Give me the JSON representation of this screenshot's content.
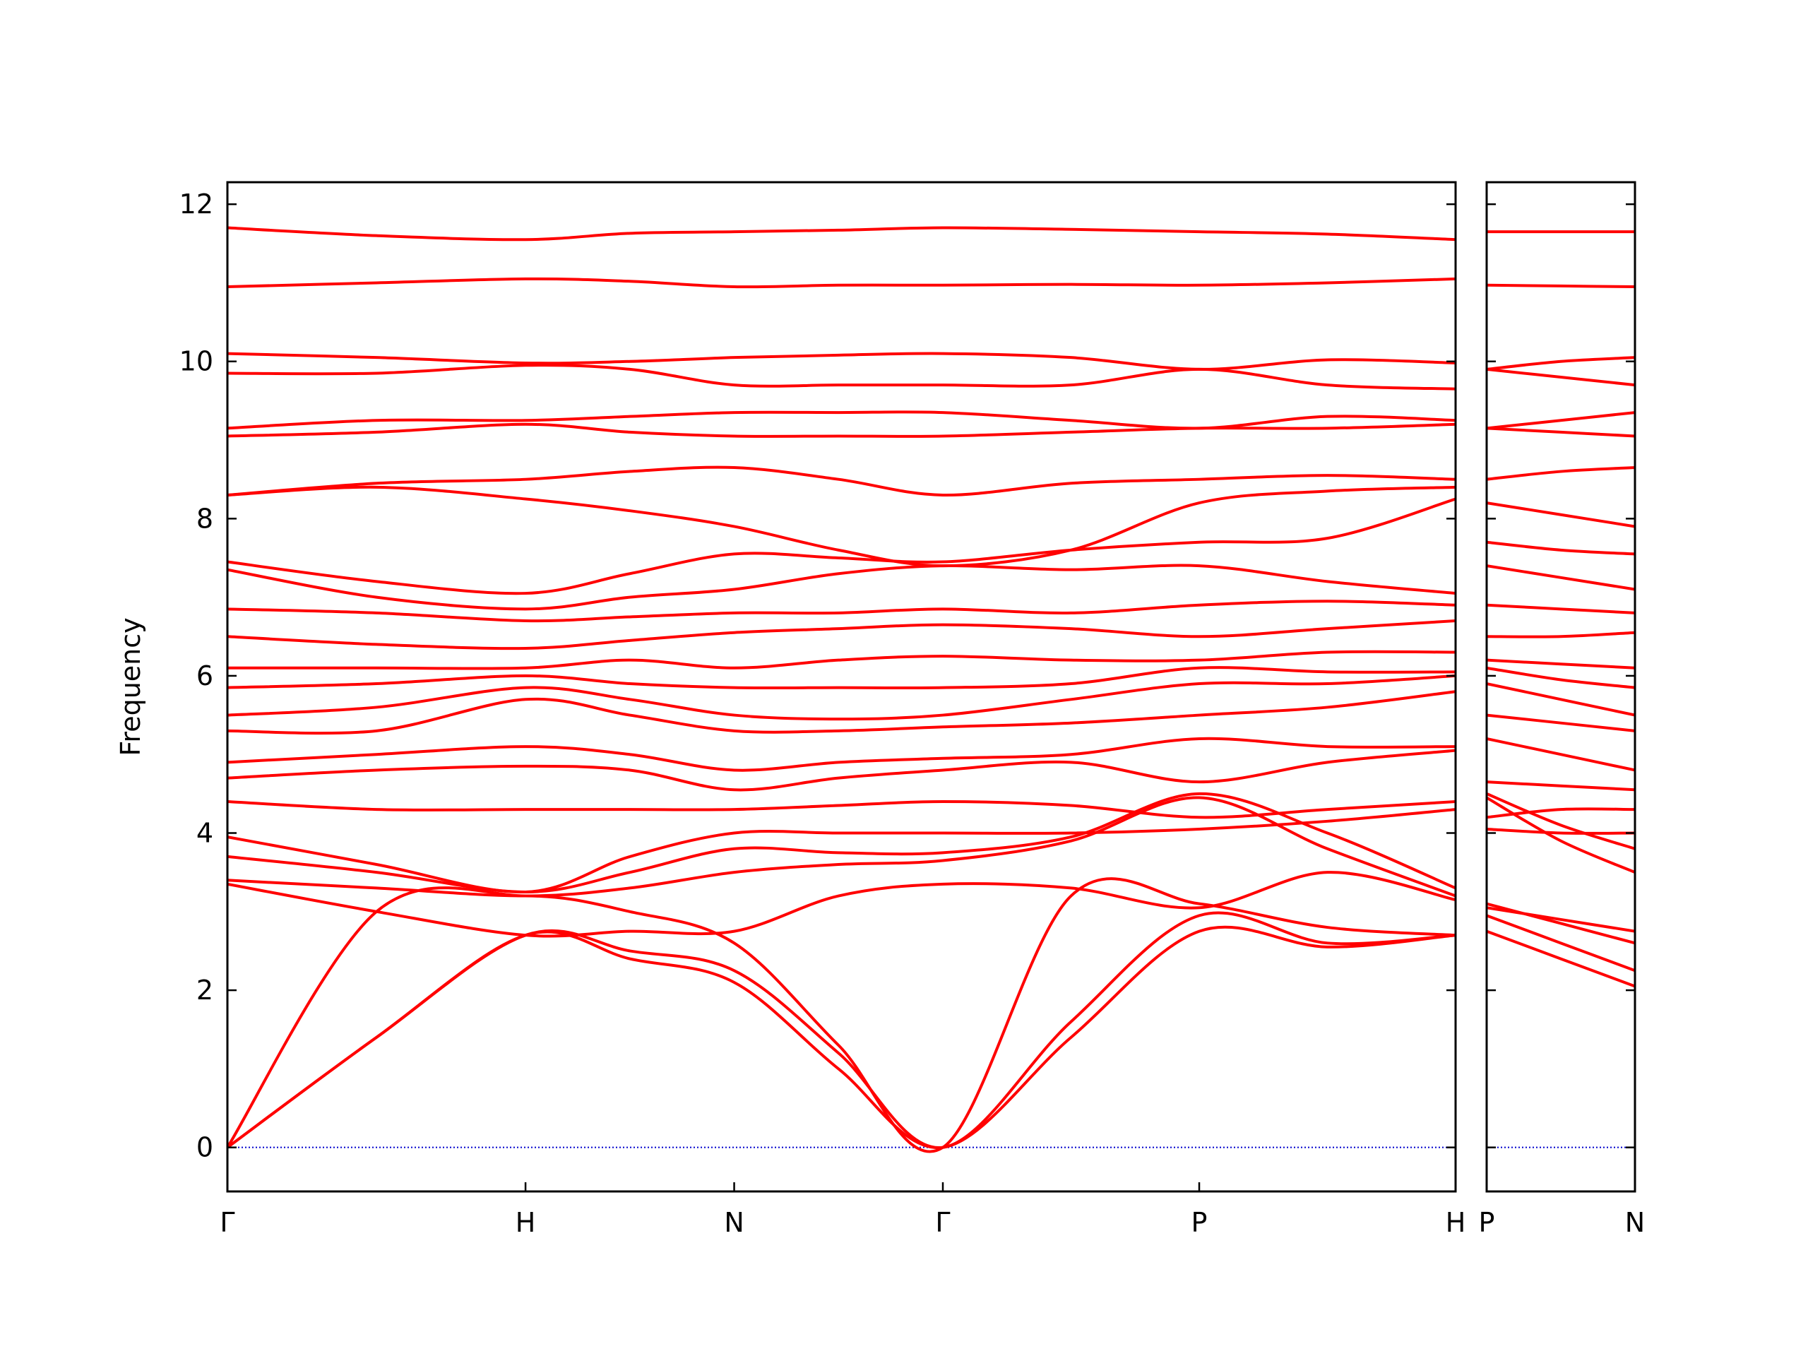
{
  "chart_data": [
    {
      "type": "line",
      "y_label": "Frequency",
      "color": "#ff0000",
      "x": [
        0,
        0.5,
        1,
        1.35,
        1.7,
        2.05,
        2.4,
        2.83,
        3.26,
        3.69,
        4.12
      ],
      "xlim": [
        0,
        4.12
      ],
      "xticks": [
        {
          "value": 0,
          "label": "Γ"
        },
        {
          "value": 1,
          "label": "H"
        },
        {
          "value": 1.7,
          "label": "N"
        },
        {
          "value": 2.4,
          "label": "Γ"
        },
        {
          "value": 3.26,
          "label": "P"
        },
        {
          "value": 4.12,
          "label": "H"
        }
      ],
      "ylim": [
        -0.56,
        12.28
      ],
      "yticks": [
        0,
        2,
        4,
        6,
        8,
        10,
        12
      ],
      "show_ytick_labels": true,
      "hline": 0,
      "hline_color": "#0000cc",
      "series": [
        {
          "values": [
            0,
            1.4,
            2.7,
            2.4,
            2.1,
            1.0,
            0,
            1.4,
            2.75,
            2.55,
            2.7
          ]
        },
        {
          "values": [
            0,
            1.4,
            2.7,
            2.5,
            2.25,
            1.2,
            0,
            1.6,
            2.95,
            2.6,
            2.7
          ]
        },
        {
          "values": [
            0,
            3.0,
            3.2,
            3.0,
            2.6,
            1.3,
            0,
            3.2,
            3.1,
            2.8,
            2.7
          ]
        },
        {
          "values": [
            3.35,
            3.0,
            2.7,
            2.75,
            2.75,
            3.2,
            3.35,
            3.3,
            3.05,
            3.5,
            3.15
          ]
        },
        {
          "values": [
            3.4,
            3.3,
            3.2,
            3.3,
            3.5,
            3.6,
            3.65,
            3.9,
            4.45,
            3.8,
            3.2
          ]
        },
        {
          "values": [
            3.7,
            3.5,
            3.25,
            3.5,
            3.8,
            3.75,
            3.75,
            3.95,
            4.5,
            4.0,
            3.3
          ]
        },
        {
          "values": [
            3.95,
            3.6,
            3.25,
            3.7,
            4.0,
            4.0,
            4.0,
            4.0,
            4.05,
            4.15,
            4.3
          ]
        },
        {
          "values": [
            4.4,
            4.3,
            4.3,
            4.3,
            4.3,
            4.35,
            4.4,
            4.35,
            4.2,
            4.3,
            4.4
          ]
        },
        {
          "values": [
            4.7,
            4.8,
            4.85,
            4.8,
            4.55,
            4.7,
            4.8,
            4.9,
            4.65,
            4.9,
            5.05
          ]
        },
        {
          "values": [
            4.9,
            5.0,
            5.1,
            5.0,
            4.8,
            4.9,
            4.95,
            5.0,
            5.2,
            5.1,
            5.1
          ]
        },
        {
          "values": [
            5.3,
            5.3,
            5.7,
            5.5,
            5.3,
            5.3,
            5.35,
            5.4,
            5.5,
            5.6,
            5.8
          ]
        },
        {
          "values": [
            5.5,
            5.6,
            5.85,
            5.7,
            5.5,
            5.45,
            5.5,
            5.7,
            5.9,
            5.9,
            6.0
          ]
        },
        {
          "values": [
            5.85,
            5.9,
            6.0,
            5.9,
            5.85,
            5.85,
            5.85,
            5.9,
            6.1,
            6.05,
            6.05
          ]
        },
        {
          "values": [
            6.1,
            6.1,
            6.1,
            6.2,
            6.1,
            6.2,
            6.25,
            6.2,
            6.2,
            6.3,
            6.3
          ]
        },
        {
          "values": [
            6.5,
            6.4,
            6.35,
            6.45,
            6.55,
            6.6,
            6.65,
            6.6,
            6.5,
            6.6,
            6.7
          ]
        },
        {
          "values": [
            6.85,
            6.8,
            6.7,
            6.75,
            6.8,
            6.8,
            6.85,
            6.8,
            6.9,
            6.95,
            6.9
          ]
        },
        {
          "values": [
            7.35,
            7.0,
            6.85,
            7.0,
            7.1,
            7.3,
            7.4,
            7.35,
            7.4,
            7.2,
            7.05
          ]
        },
        {
          "values": [
            7.45,
            7.2,
            7.05,
            7.3,
            7.55,
            7.5,
            7.45,
            7.6,
            7.7,
            7.75,
            8.25
          ]
        },
        {
          "values": [
            8.3,
            8.4,
            8.25,
            8.1,
            7.9,
            7.6,
            7.4,
            7.6,
            8.2,
            8.35,
            8.4
          ]
        },
        {
          "values": [
            8.3,
            8.45,
            8.5,
            8.6,
            8.65,
            8.5,
            8.3,
            8.45,
            8.5,
            8.55,
            8.5
          ]
        },
        {
          "values": [
            9.05,
            9.1,
            9.2,
            9.1,
            9.05,
            9.05,
            9.05,
            9.1,
            9.15,
            9.15,
            9.2
          ]
        },
        {
          "values": [
            9.15,
            9.25,
            9.25,
            9.3,
            9.35,
            9.35,
            9.35,
            9.25,
            9.15,
            9.3,
            9.25
          ]
        },
        {
          "values": [
            9.85,
            9.85,
            9.95,
            9.9,
            9.7,
            9.7,
            9.7,
            9.7,
            9.9,
            9.7,
            9.65
          ]
        },
        {
          "values": [
            10.1,
            10.05,
            9.98,
            10.0,
            10.05,
            10.08,
            10.1,
            10.05,
            9.9,
            10.02,
            9.98
          ]
        },
        {
          "values": [
            10.95,
            11.0,
            11.05,
            11.02,
            10.95,
            10.97,
            10.97,
            10.98,
            10.97,
            11.0,
            11.05
          ]
        },
        {
          "values": [
            11.7,
            11.6,
            11.55,
            11.63,
            11.65,
            11.67,
            11.7,
            11.68,
            11.65,
            11.62,
            11.55
          ]
        }
      ]
    },
    {
      "type": "line",
      "color": "#ff0000",
      "x": [
        0,
        0.25,
        0.5
      ],
      "xlim": [
        0,
        0.5
      ],
      "xticks": [
        {
          "value": 0,
          "label": "P"
        },
        {
          "value": 0.5,
          "label": "N"
        }
      ],
      "ylim": [
        -0.56,
        12.28
      ],
      "yticks": [
        0,
        2,
        4,
        6,
        8,
        10,
        12
      ],
      "show_ytick_labels": false,
      "hline": 0,
      "hline_color": "#0000cc",
      "series": [
        {
          "values": [
            2.75,
            2.4,
            2.05
          ]
        },
        {
          "values": [
            2.95,
            2.6,
            2.25
          ]
        },
        {
          "values": [
            3.1,
            2.85,
            2.6
          ]
        },
        {
          "values": [
            3.05,
            2.9,
            2.75
          ]
        },
        {
          "values": [
            4.45,
            3.9,
            3.5
          ]
        },
        {
          "values": [
            4.5,
            4.1,
            3.8
          ]
        },
        {
          "values": [
            4.05,
            4.0,
            4.0
          ]
        },
        {
          "values": [
            4.2,
            4.3,
            4.3
          ]
        },
        {
          "values": [
            4.65,
            4.6,
            4.55
          ]
        },
        {
          "values": [
            5.2,
            5.0,
            4.8
          ]
        },
        {
          "values": [
            5.5,
            5.4,
            5.3
          ]
        },
        {
          "values": [
            5.9,
            5.7,
            5.5
          ]
        },
        {
          "values": [
            6.1,
            5.95,
            5.85
          ]
        },
        {
          "values": [
            6.2,
            6.15,
            6.1
          ]
        },
        {
          "values": [
            6.5,
            6.5,
            6.55
          ]
        },
        {
          "values": [
            6.9,
            6.85,
            6.8
          ]
        },
        {
          "values": [
            7.4,
            7.25,
            7.1
          ]
        },
        {
          "values": [
            7.7,
            7.6,
            7.55
          ]
        },
        {
          "values": [
            8.2,
            8.05,
            7.9
          ]
        },
        {
          "values": [
            8.5,
            8.6,
            8.65
          ]
        },
        {
          "values": [
            9.15,
            9.1,
            9.05
          ]
        },
        {
          "values": [
            9.15,
            9.25,
            9.35
          ]
        },
        {
          "values": [
            9.9,
            9.8,
            9.7
          ]
        },
        {
          "values": [
            9.9,
            10.0,
            10.05
          ]
        },
        {
          "values": [
            10.97,
            10.96,
            10.95
          ]
        },
        {
          "values": [
            11.65,
            11.65,
            11.65
          ]
        }
      ]
    }
  ]
}
